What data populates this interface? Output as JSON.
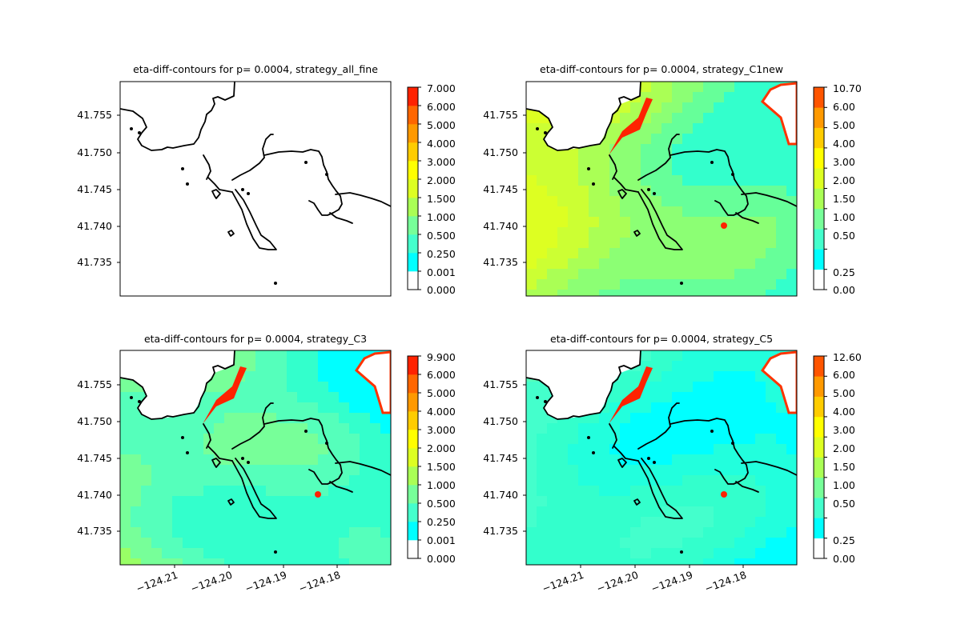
{
  "chart_data": [
    {
      "type": "heatmap",
      "title": "eta-diff-contours for p= 0.0004, strategy_all_fine",
      "fill_style": "empty",
      "y_ticks": [
        "41.755",
        "41.750",
        "41.745",
        "41.740",
        "41.735"
      ],
      "x_ticks": [],
      "colorbar": {
        "tick_labels": [
          "0.000",
          "0.001",
          "0.250",
          "0.500",
          "1.000",
          "1.500",
          "2.000",
          "3.000",
          "4.000",
          "5.000",
          "6.000",
          "7.000"
        ],
        "colors": [
          "#ffffff",
          "#00ffff",
          "#44ffcc",
          "#77ff99",
          "#aaff55",
          "#ddff22",
          "#ffff00",
          "#ffcc00",
          "#ff9900",
          "#ff6600",
          "#ff2200"
        ]
      }
    },
    {
      "type": "heatmap",
      "title": "eta-diff-contours for p= 0.0004, strategy_C1new",
      "fill_style": "yellow",
      "y_ticks": [
        "41.755",
        "41.750",
        "41.745",
        "41.740",
        "41.735"
      ],
      "x_ticks": [],
      "colorbar": {
        "tick_labels": [
          "0.00",
          "0.25",
          "0.50",
          "1.00",
          "1.50",
          "2.00",
          "3.00",
          "4.00",
          "5.00",
          "6.00",
          "10.70"
        ],
        "colors": [
          "#ffffff",
          "#00ffff",
          "#44ffcc",
          "#77ff99",
          "#aaff55",
          "#ddff22",
          "#ffff00",
          "#ffcc00",
          "#ff9900",
          "#ff5500"
        ]
      }
    },
    {
      "type": "heatmap",
      "title": "eta-diff-contours for p= 0.0004, strategy_C3",
      "fill_style": "mid",
      "y_ticks": [
        "41.755",
        "41.750",
        "41.745",
        "41.740",
        "41.735"
      ],
      "x_ticks": [
        "−124.21",
        "−124.20",
        "−124.19",
        "−124.18"
      ],
      "colorbar": {
        "tick_labels": [
          "0.000",
          "0.001",
          "0.250",
          "0.500",
          "1.000",
          "1.500",
          "2.000",
          "3.000",
          "4.000",
          "5.000",
          "6.000",
          "9.900"
        ],
        "colors": [
          "#ffffff",
          "#00ffff",
          "#44ffcc",
          "#77ff99",
          "#aaff55",
          "#ddff22",
          "#ffff00",
          "#ffcc00",
          "#ff9900",
          "#ff6600",
          "#ff2200"
        ]
      }
    },
    {
      "type": "heatmap",
      "title": "eta-diff-contours for p= 0.0004, strategy_C5",
      "fill_style": "cool",
      "y_ticks": [
        "41.755",
        "41.750",
        "41.745",
        "41.740",
        "41.735"
      ],
      "x_ticks": [
        "−124.21",
        "−124.20",
        "−124.19",
        "−124.18"
      ],
      "colorbar": {
        "tick_labels": [
          "0.00",
          "0.25",
          "0.50",
          "1.00",
          "1.50",
          "2.00",
          "3.00",
          "4.00",
          "5.00",
          "6.00",
          "12.60"
        ],
        "colors": [
          "#ffffff",
          "#00ffff",
          "#44ffcc",
          "#77ff99",
          "#aaff55",
          "#ddff22",
          "#ffff00",
          "#ffcc00",
          "#ff9900",
          "#ff5500"
        ]
      }
    }
  ]
}
